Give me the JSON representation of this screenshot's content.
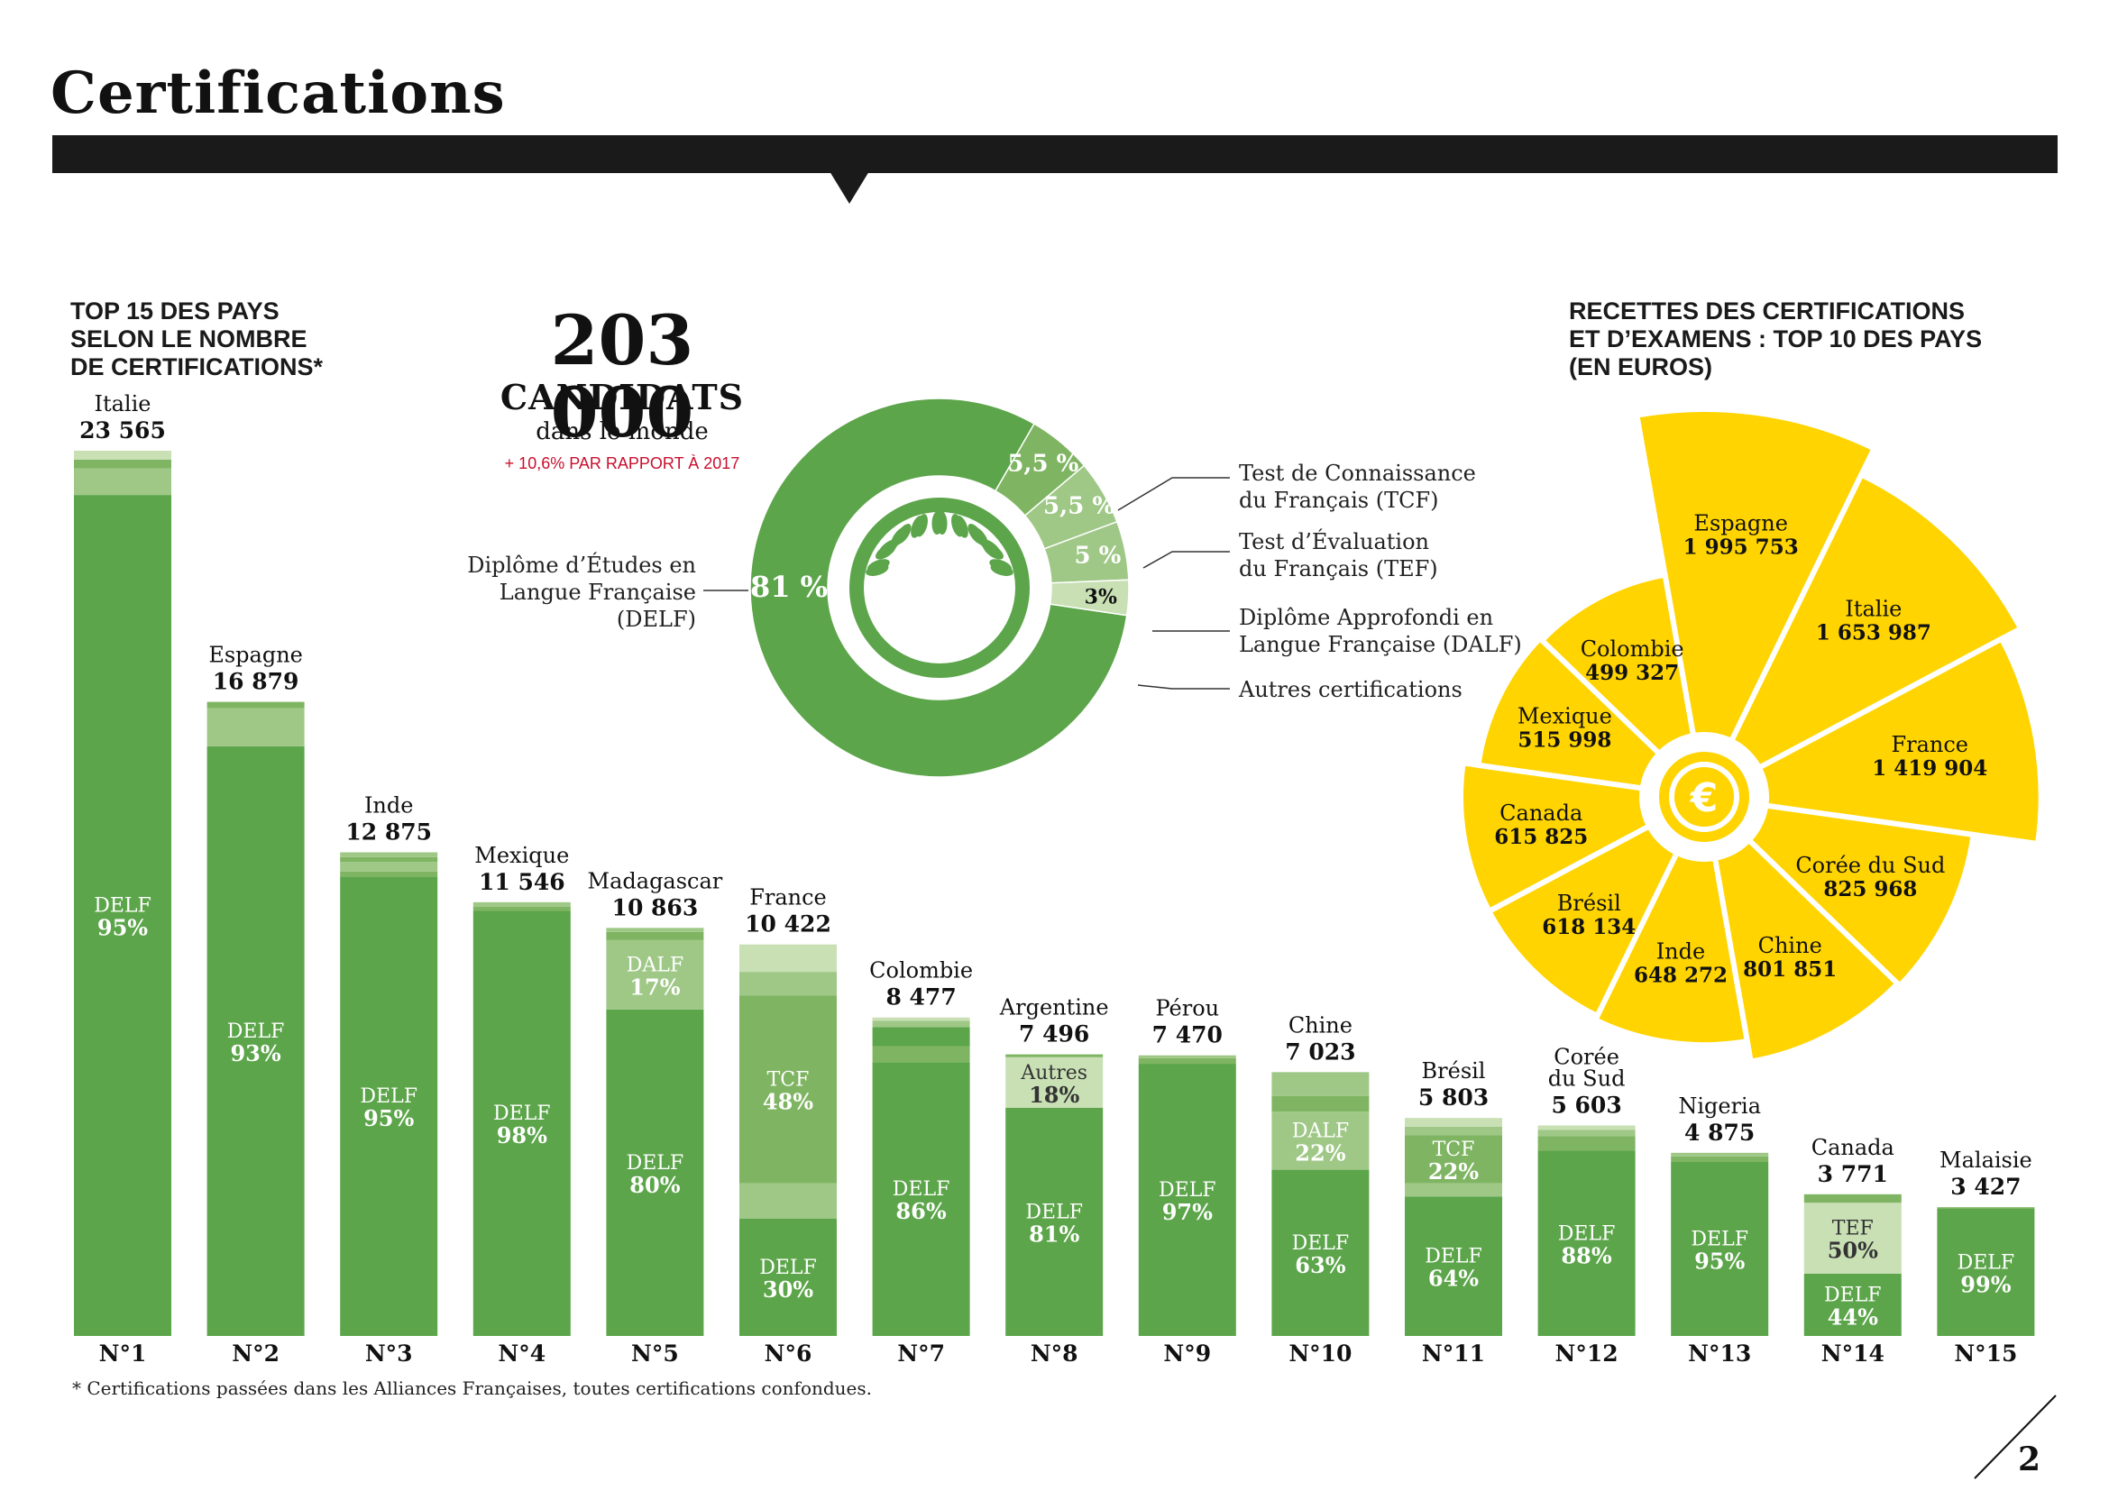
{
  "page": {
    "title": "Certifications",
    "footnote": "* Certifications passées dans les Alliances Françaises, toutes certifications confondues.",
    "page_number": "2"
  },
  "colors": {
    "green_dark": "#5ca54a",
    "green_mid": "#7fb562",
    "green_light": "#9fc887",
    "green_pale": "#c8e0b4",
    "yellow": "#ffd400",
    "bar": "#1a1a1a"
  },
  "bars_section": {
    "title": "TOP 15 DES PAYS\nSELON LE NOMBRE\nDE CERTIFICATIONS*"
  },
  "donut_section": {
    "big_number": "203 000",
    "big_label": "CANDIDATS",
    "sub": "dans le monde",
    "growth": "+ 10,6% PAR RAPPORT À 2017",
    "delf_label": "Diplôme d’Études en\nLangue Française (DELF)",
    "tcf_label": "Test de Connaissance\ndu Français (TCF)",
    "tef_label": "Test d’Évaluation\ndu Français (TEF)",
    "dalf_label": "Diplôme Approfondi en\nLangue Française (DALF)",
    "autres_label": "Autres certifications"
  },
  "pie_section": {
    "title": "RECETTES DES CERTIFICATIONS\nET D’EXAMENS : TOP 10 DES PAYS\n(EN EUROS)"
  },
  "chart_data": [
    {
      "type": "bar",
      "categories": [
        "Italie",
        "Espagne",
        "Inde",
        "Mexique",
        "Madagascar",
        "France",
        "Colombie",
        "Argentine",
        "Pérou",
        "Chine",
        "Brésil",
        "Corée du Sud",
        "Nigeria",
        "Canada",
        "Malaisie"
      ],
      "display_names": [
        "Italie",
        "Espagne",
        "Inde",
        "Mexique",
        "Madagascar",
        "France",
        "Colombie",
        "Argentine",
        "Pérou",
        "Chine",
        "Brésil",
        "Corée\ndu Sud",
        "Nigeria",
        "Canada",
        "Malaisie"
      ],
      "values": [
        23565,
        16879,
        12875,
        11546,
        10863,
        10422,
        8477,
        7496,
        7470,
        7023,
        5803,
        5603,
        4875,
        3771,
        3427
      ],
      "value_labels": [
        "23 565",
        "16 879",
        "12 875",
        "11 546",
        "10 863",
        "10 422",
        "8 477",
        "7 496",
        "7 470",
        "7 023",
        "5 803",
        "5 603",
        "4 875",
        "3 771",
        "3 427"
      ],
      "ranks": [
        "N°1",
        "N°2",
        "N°3",
        "N°4",
        "N°5",
        "N°6",
        "N°7",
        "N°8",
        "N°9",
        "N°10",
        "N°11",
        "N°12",
        "N°13",
        "N°14",
        "N°15"
      ],
      "segments": [
        [
          {
            "share": 0.95,
            "color": "green_dark",
            "label": "DELF",
            "pct": "95%"
          },
          {
            "share": 0.03,
            "color": "green_light"
          },
          {
            "share": 0.01,
            "color": "green_mid"
          },
          {
            "share": 0.01,
            "color": "green_pale"
          }
        ],
        [
          {
            "share": 0.93,
            "color": "green_dark",
            "label": "DELF",
            "pct": "93%"
          },
          {
            "share": 0.06,
            "color": "green_light"
          },
          {
            "share": 0.01,
            "color": "green_mid"
          }
        ],
        [
          {
            "share": 0.95,
            "color": "green_dark",
            "label": "DELF",
            "pct": "95%"
          },
          {
            "share": 0.01,
            "color": "green_mid"
          },
          {
            "share": 0.02,
            "color": "green_light"
          },
          {
            "share": 0.01,
            "color": "green_mid"
          },
          {
            "share": 0.01,
            "color": "green_light"
          }
        ],
        [
          {
            "share": 0.98,
            "color": "green_dark",
            "label": "DELF",
            "pct": "98%"
          },
          {
            "share": 0.01,
            "color": "green_mid"
          },
          {
            "share": 0.01,
            "color": "green_light"
          }
        ],
        [
          {
            "share": 0.8,
            "color": "green_dark",
            "label": "DELF",
            "pct": "80%"
          },
          {
            "share": 0.17,
            "color": "green_light",
            "label": "DALF",
            "pct": "17%"
          },
          {
            "share": 0.02,
            "color": "green_mid"
          },
          {
            "share": 0.01,
            "color": "green_light"
          }
        ],
        [
          {
            "share": 0.3,
            "color": "green_dark",
            "label": "DELF",
            "pct": "30%"
          },
          {
            "share": 0.09,
            "color": "green_light"
          },
          {
            "share": 0.48,
            "color": "green_mid",
            "label": "TCF",
            "pct": "48%"
          },
          {
            "share": 0.06,
            "color": "green_light"
          },
          {
            "share": 0.07,
            "color": "green_pale"
          }
        ],
        [
          {
            "share": 0.86,
            "color": "green_dark",
            "label": "DELF",
            "pct": "86%"
          },
          {
            "share": 0.05,
            "color": "green_mid"
          },
          {
            "share": 0.06,
            "color": "green_dark"
          },
          {
            "share": 0.02,
            "color": "green_light"
          },
          {
            "share": 0.01,
            "color": "green_pale"
          }
        ],
        [
          {
            "share": 0.81,
            "color": "green_dark",
            "label": "DELF",
            "pct": "81%"
          },
          {
            "share": 0.18,
            "color": "green_pale",
            "label": "Autres",
            "pct": "18%"
          },
          {
            "share": 0.01,
            "color": "green_mid"
          }
        ],
        [
          {
            "share": 0.97,
            "color": "green_dark",
            "label": "DELF",
            "pct": "97%"
          },
          {
            "share": 0.02,
            "color": "green_mid"
          },
          {
            "share": 0.01,
            "color": "green_light"
          }
        ],
        [
          {
            "share": 0.63,
            "color": "green_dark",
            "label": "DELF",
            "pct": "63%"
          },
          {
            "share": 0.22,
            "color": "green_light",
            "label": "DALF",
            "pct": "22%"
          },
          {
            "share": 0.06,
            "color": "green_mid"
          },
          {
            "share": 0.09,
            "color": "green_light"
          }
        ],
        [
          {
            "share": 0.64,
            "color": "green_dark",
            "label": "DELF",
            "pct": "64%"
          },
          {
            "share": 0.06,
            "color": "green_light"
          },
          {
            "share": 0.22,
            "color": "green_mid",
            "label": "TCF",
            "pct": "22%"
          },
          {
            "share": 0.04,
            "color": "green_light"
          },
          {
            "share": 0.04,
            "color": "green_pale"
          }
        ],
        [
          {
            "share": 0.88,
            "color": "green_dark",
            "label": "DELF",
            "pct": "88%"
          },
          {
            "share": 0.07,
            "color": "green_mid"
          },
          {
            "share": 0.03,
            "color": "green_light"
          },
          {
            "share": 0.02,
            "color": "green_pale"
          }
        ],
        [
          {
            "share": 0.95,
            "color": "green_dark",
            "label": "DELF",
            "pct": "95%"
          },
          {
            "share": 0.03,
            "color": "green_mid"
          },
          {
            "share": 0.02,
            "color": "green_light"
          }
        ],
        [
          {
            "share": 0.44,
            "color": "green_dark",
            "label": "DELF",
            "pct": "44%"
          },
          {
            "share": 0.5,
            "color": "green_pale",
            "label": "TEF",
            "pct": "50%"
          },
          {
            "share": 0.06,
            "color": "green_mid"
          }
        ],
        [
          {
            "share": 0.99,
            "color": "green_dark",
            "label": "DELF",
            "pct": "99%"
          },
          {
            "share": 0.01,
            "color": "green_mid"
          }
        ]
      ],
      "ylim": [
        0,
        23565
      ]
    },
    {
      "type": "pie",
      "title": "",
      "labels": [
        "DELF",
        "TCF",
        "TEF",
        "DALF",
        "Autres certifications"
      ],
      "values": [
        81,
        5.5,
        5.5,
        5,
        3
      ],
      "value_labels": [
        "81 %",
        "5,5 %",
        "5,5 %",
        "5 %",
        "3%"
      ]
    },
    {
      "type": "pie",
      "subtype": "polar-area",
      "labels": [
        "Espagne",
        "Italie",
        "France",
        "Corée du Sud",
        "Chine",
        "Inde",
        "Brésil",
        "Canada",
        "Mexique",
        "Colombie"
      ],
      "values": [
        1995753,
        1653987,
        1419904,
        825968,
        801851,
        648272,
        618134,
        615825,
        515998,
        499327
      ],
      "value_labels": [
        "1 995 753",
        "1 653 987",
        "1 419 904",
        "825 968",
        "801 851",
        "648 272",
        "618 134",
        "615 825",
        "515 998",
        "499 327"
      ]
    }
  ]
}
